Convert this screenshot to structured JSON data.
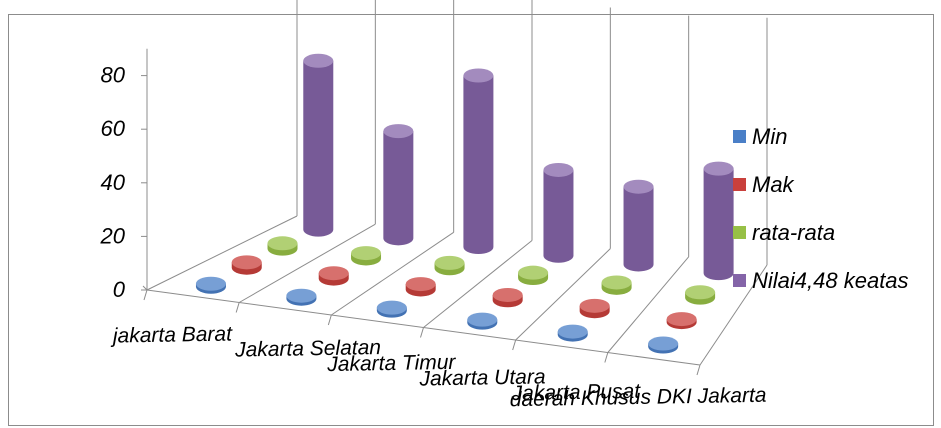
{
  "chart_data": {
    "type": "bar",
    "style": "3d-column",
    "title": "",
    "categories": [
      "jakarta Barat",
      "Jakarta Selatan",
      "Jakarta Timur",
      "Jakarta Utara",
      "Jakarta Pusat",
      "daerah Khusus DKI Jakarta"
    ],
    "series": [
      {
        "name": "Min",
        "color": "#4a7fc7",
        "values": [
          1,
          1,
          1,
          1,
          1,
          0
        ]
      },
      {
        "name": "Mak",
        "color": "#c9403c",
        "values": [
          2,
          2,
          2,
          2,
          2,
          0
        ]
      },
      {
        "name": "rata-rata",
        "color": "#97c046",
        "values": [
          2,
          2,
          2,
          2,
          2,
          2
        ]
      },
      {
        "name": "Nilai4,48 keatas",
        "color": "#8464a8",
        "values": [
          63,
          40,
          64,
          32,
          29,
          39
        ]
      }
    ],
    "yticks": [
      0,
      20,
      40,
      60,
      80
    ],
    "ylim": [
      0,
      90
    ],
    "legend": "right",
    "grid": true
  }
}
